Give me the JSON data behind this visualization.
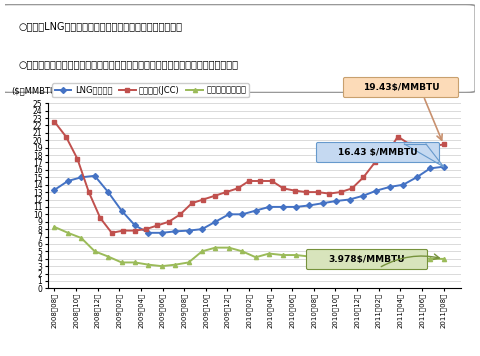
{
  "title_line1": "○日本のLNG輸入価格は、原油価格の上昇により、上昇。",
  "title_line2": "○米国の天然ガス価格は、シェールガスの生産拡大により、需給が緩和し、下落。",
  "ylabel": "($／MMBTU)",
  "ylim": [
    0,
    25
  ],
  "yticks": [
    0,
    1,
    2,
    3,
    4,
    5,
    6,
    7,
    8,
    9,
    10,
    11,
    12,
    13,
    14,
    15,
    16,
    17,
    18,
    19,
    20,
    21,
    22,
    23,
    24,
    25
  ],
  "legend_labels": [
    "LNG輸入価格",
    "原油価格(JCC)",
    "ヘンリーハブ価格"
  ],
  "line_colors": [
    "#4472C4",
    "#C0504D",
    "#9BBB59"
  ],
  "annotation_red": "19.43$/MMBTU",
  "annotation_blue": "16.43 $/MMBTU",
  "annotation_green": "3.978$/MMBTU",
  "x_labels": [
    "2008年08月",
    "2008年10月",
    "2008年12月",
    "2009年02月",
    "2009年04月",
    "2009年06月",
    "2009年08月",
    "2009年10月",
    "2009年12月",
    "2010年02月",
    "2010年04月",
    "2010年06月",
    "2010年08月",
    "2010年10月",
    "2010年12月",
    "2011年02月",
    "2011年04月",
    "2011年06月",
    "2011年08月"
  ],
  "lng": [
    13.3,
    14.5,
    15.0,
    15.2,
    13.0,
    10.5,
    8.5,
    7.5,
    7.5,
    7.7,
    7.8,
    8.0,
    9.0,
    10.0,
    10.0,
    10.5,
    11.0,
    11.0,
    11.0,
    11.2,
    11.5,
    11.8,
    12.0,
    12.5,
    13.2,
    13.7,
    14.0,
    15.0,
    16.2,
    16.43
  ],
  "jcc": [
    22.5,
    20.5,
    17.5,
    13.0,
    9.5,
    7.5,
    7.8,
    7.8,
    8.0,
    8.5,
    9.0,
    10.0,
    11.5,
    12.0,
    12.5,
    13.0,
    13.5,
    14.5,
    14.5,
    14.5,
    13.5,
    13.2,
    13.0,
    13.0,
    12.8,
    13.0,
    13.5,
    15.0,
    17.0,
    18.0,
    20.5,
    19.5,
    19.3,
    19.2,
    19.43
  ],
  "henry": [
    8.3,
    7.5,
    6.8,
    5.0,
    4.3,
    3.5,
    3.5,
    3.2,
    3.0,
    3.2,
    3.5,
    5.0,
    5.5,
    5.5,
    5.0,
    4.2,
    4.7,
    4.5,
    4.5,
    4.3,
    4.0,
    3.8,
    4.0,
    4.2,
    4.3,
    4.5,
    4.3,
    4.2,
    4.0,
    3.978
  ]
}
